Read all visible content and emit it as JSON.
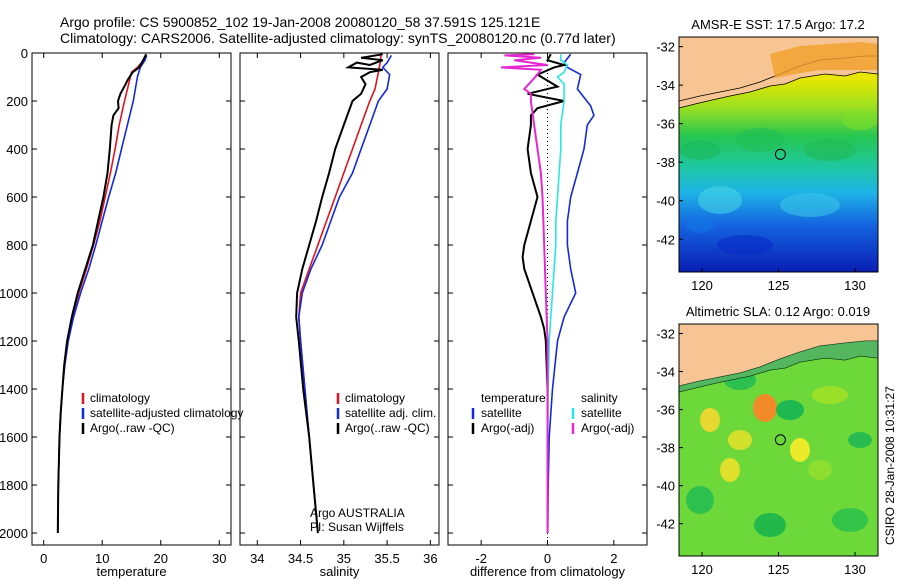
{
  "header": {
    "title_line1": "Argo profile: CS 5900852_102 19-Jan-2008 20080120_58 37.591S 125.121E",
    "title_line2": "Climatology: CARS2006. Satellite-adjusted climatology: synTS_20080120.nc (0.77d later)"
  },
  "colors": {
    "red": "#e0141e",
    "blue": "#1428dc",
    "black": "#000000",
    "cyan": "#28e6e6",
    "magenta": "#e628d2",
    "land": "#f7c493"
  },
  "chart_data": [
    {
      "id": "temperature",
      "type": "line",
      "xlabel": "temperature",
      "xlim": [
        -2,
        32
      ],
      "xticks": [
        0,
        10,
        20,
        30
      ],
      "ylim": [
        2050,
        0
      ],
      "yticks": [
        0,
        200,
        400,
        600,
        800,
        1000,
        1200,
        1400,
        1600,
        1800,
        2000
      ],
      "legend": [
        "climatology",
        "satellite-adjusted climatology",
        "Argo(..raw -QC)"
      ],
      "series": [
        {
          "name": "climatology",
          "color": "red",
          "points": [
            [
              17.4,
              10
            ],
            [
              17.1,
              30
            ],
            [
              16.0,
              60
            ],
            [
              15.0,
              80
            ],
            [
              14.6,
              120
            ],
            [
              13.8,
              200
            ],
            [
              12.9,
              300
            ],
            [
              12.2,
              400
            ],
            [
              11.4,
              500
            ],
            [
              10.5,
              600
            ],
            [
              9.6,
              700
            ],
            [
              8.5,
              800
            ],
            [
              7.3,
              900
            ],
            [
              6.0,
              1000
            ],
            [
              4.9,
              1100
            ],
            [
              4.1,
              1200
            ],
            [
              3.6,
              1300
            ],
            [
              3.2,
              1400
            ],
            [
              2.9,
              1500
            ],
            [
              2.7,
              1600
            ],
            [
              2.5,
              1800
            ],
            [
              2.4,
              2000
            ]
          ]
        },
        {
          "name": "satellite-adjusted climatology",
          "color": "blue",
          "points": [
            [
              17.6,
              10
            ],
            [
              17.3,
              30
            ],
            [
              16.5,
              60
            ],
            [
              16.0,
              100
            ],
            [
              15.3,
              200
            ],
            [
              14.3,
              300
            ],
            [
              13.3,
              400
            ],
            [
              12.3,
              500
            ],
            [
              11.1,
              600
            ],
            [
              10.0,
              700
            ],
            [
              8.9,
              800
            ],
            [
              7.7,
              900
            ],
            [
              6.3,
              1000
            ],
            [
              5.1,
              1100
            ],
            [
              4.2,
              1200
            ],
            [
              3.6,
              1300
            ],
            [
              3.2,
              1400
            ],
            [
              2.9,
              1500
            ],
            [
              2.7,
              1600
            ],
            [
              2.5,
              1800
            ],
            [
              2.4,
              2000
            ]
          ]
        },
        {
          "name": "Argo(..raw -QC)",
          "color": "black",
          "points": [
            [
              17.5,
              5
            ],
            [
              17.0,
              30
            ],
            [
              16.3,
              60
            ],
            [
              15.2,
              80
            ],
            [
              14.4,
              110
            ],
            [
              14.0,
              130
            ],
            [
              13.1,
              170
            ],
            [
              12.7,
              200
            ],
            [
              12.8,
              230
            ],
            [
              11.9,
              260
            ],
            [
              11.6,
              300
            ],
            [
              11.3,
              400
            ],
            [
              10.9,
              500
            ],
            [
              10.2,
              600
            ],
            [
              9.3,
              700
            ],
            [
              8.4,
              800
            ],
            [
              7.1,
              900
            ],
            [
              5.8,
              1000
            ],
            [
              4.8,
              1100
            ],
            [
              4.0,
              1200
            ],
            [
              3.5,
              1300
            ],
            [
              3.2,
              1400
            ],
            [
              2.9,
              1500
            ],
            [
              2.7,
              1600
            ],
            [
              2.5,
              1800
            ],
            [
              2.4,
              2000
            ]
          ]
        }
      ]
    },
    {
      "id": "salinity",
      "type": "line",
      "xlabel": "salinity",
      "xlim": [
        33.8,
        36.1
      ],
      "xticks": [
        34,
        34.5,
        35,
        35.5,
        36
      ],
      "ylim": [
        2050,
        0
      ],
      "legend": [
        "climatology",
        "satellite adj. clim.",
        "Argo(..raw -QC)"
      ],
      "annotation": [
        "Argo AUSTRALIA",
        "PI: Susan Wijffels"
      ],
      "series": [
        {
          "name": "climatology",
          "color": "red",
          "points": [
            [
              35.43,
              10
            ],
            [
              35.42,
              40
            ],
            [
              35.4,
              80
            ],
            [
              35.36,
              150
            ],
            [
              35.3,
              200
            ],
            [
              35.2,
              300
            ],
            [
              35.1,
              400
            ],
            [
              35.0,
              500
            ],
            [
              34.9,
              600
            ],
            [
              34.8,
              700
            ],
            [
              34.7,
              800
            ],
            [
              34.6,
              900
            ],
            [
              34.5,
              1000
            ],
            [
              34.48,
              1100
            ],
            [
              34.5,
              1200
            ],
            [
              34.55,
              1400
            ],
            [
              34.6,
              1600
            ],
            [
              34.65,
              1800
            ],
            [
              34.7,
              2000
            ]
          ]
        },
        {
          "name": "satellite adj. clim.",
          "color": "blue",
          "points": [
            [
              35.55,
              10
            ],
            [
              35.5,
              40
            ],
            [
              35.45,
              60
            ],
            [
              35.53,
              90
            ],
            [
              35.5,
              150
            ],
            [
              35.4,
              200
            ],
            [
              35.3,
              300
            ],
            [
              35.2,
              400
            ],
            [
              35.1,
              500
            ],
            [
              34.95,
              600
            ],
            [
              34.85,
              700
            ],
            [
              34.75,
              800
            ],
            [
              34.62,
              900
            ],
            [
              34.52,
              1000
            ],
            [
              34.48,
              1100
            ],
            [
              34.5,
              1200
            ],
            [
              34.55,
              1400
            ],
            [
              34.6,
              1600
            ],
            [
              34.65,
              1800
            ],
            [
              34.7,
              2000
            ]
          ]
        },
        {
          "name": "Argo(..raw -QC)",
          "color": "black",
          "points": [
            [
              35.45,
              5
            ],
            [
              35.2,
              20
            ],
            [
              35.45,
              30
            ],
            [
              35.3,
              50
            ],
            [
              35.15,
              40
            ],
            [
              35.05,
              60
            ],
            [
              35.45,
              70
            ],
            [
              35.3,
              80
            ],
            [
              35.2,
              100
            ],
            [
              35.25,
              130
            ],
            [
              35.2,
              170
            ],
            [
              35.1,
              200
            ],
            [
              35.0,
              300
            ],
            [
              34.9,
              400
            ],
            [
              34.83,
              500
            ],
            [
              34.75,
              600
            ],
            [
              34.68,
              700
            ],
            [
              34.6,
              800
            ],
            [
              34.52,
              900
            ],
            [
              34.46,
              1000
            ],
            [
              34.45,
              1100
            ],
            [
              34.48,
              1200
            ],
            [
              34.53,
              1400
            ],
            [
              34.6,
              1600
            ],
            [
              34.65,
              1800
            ],
            [
              34.7,
              2000
            ]
          ]
        }
      ]
    },
    {
      "id": "difference",
      "type": "line",
      "xlabel": "difference from climatology",
      "xlim": [
        -3,
        3
      ],
      "xticks": [
        -2,
        0,
        2
      ],
      "ylim": [
        2050,
        0
      ],
      "legend": [
        {
          "group": "temperature",
          "items": [
            "satellite",
            "Argo(-adj)"
          ]
        },
        {
          "group": "salinity",
          "items": [
            "satellite",
            "Argo(-adj)"
          ]
        }
      ],
      "series": [
        {
          "name": "temperature satellite",
          "color": "blue",
          "points": [
            [
              0.7,
              5
            ],
            [
              0.5,
              40
            ],
            [
              0.6,
              60
            ],
            [
              1.0,
              90
            ],
            [
              0.9,
              150
            ],
            [
              1.3,
              220
            ],
            [
              1.4,
              260
            ],
            [
              1.2,
              300
            ],
            [
              1.1,
              400
            ],
            [
              0.9,
              500
            ],
            [
              0.7,
              600
            ],
            [
              0.6,
              700
            ],
            [
              0.6,
              800
            ],
            [
              0.7,
              900
            ],
            [
              0.85,
              1000
            ],
            [
              0.5,
              1100
            ],
            [
              0.3,
              1200
            ],
            [
              0.15,
              1400
            ],
            [
              0.05,
              1600
            ],
            [
              0.02,
              1800
            ],
            [
              0.01,
              2000
            ]
          ]
        },
        {
          "name": "temperature Argo(-adj)",
          "color": "black",
          "points": [
            [
              0.1,
              5
            ],
            [
              0.0,
              30
            ],
            [
              0.5,
              50
            ],
            [
              0.2,
              60
            ],
            [
              -0.3,
              90
            ],
            [
              0.3,
              140
            ],
            [
              -0.6,
              170
            ],
            [
              0.5,
              200
            ],
            [
              -0.3,
              230
            ],
            [
              -0.5,
              260
            ],
            [
              -0.5,
              300
            ],
            [
              -0.6,
              400
            ],
            [
              -0.5,
              500
            ],
            [
              -0.3,
              600
            ],
            [
              -0.5,
              700
            ],
            [
              -0.7,
              800
            ],
            [
              -0.75,
              850
            ],
            [
              -0.7,
              900
            ],
            [
              -0.45,
              1000
            ],
            [
              -0.2,
              1100
            ],
            [
              -0.1,
              1150
            ],
            [
              -0.05,
              1200
            ],
            [
              0.0,
              1400
            ],
            [
              0.0,
              1600
            ],
            [
              0.0,
              2000
            ]
          ]
        },
        {
          "name": "salinity satellite",
          "color": "cyan",
          "points": [
            [
              0.4,
              5
            ],
            [
              0.4,
              30
            ],
            [
              0.6,
              50
            ],
            [
              0.5,
              80
            ],
            [
              0.3,
              100
            ],
            [
              0.5,
              130
            ],
            [
              0.5,
              200
            ],
            [
              0.4,
              300
            ],
            [
              0.4,
              400
            ],
            [
              0.35,
              500
            ],
            [
              0.3,
              600
            ],
            [
              0.25,
              700
            ],
            [
              0.25,
              800
            ],
            [
              0.2,
              900
            ],
            [
              0.15,
              1000
            ],
            [
              0.1,
              1100
            ],
            [
              0.05,
              1200
            ],
            [
              0.02,
              1400
            ],
            [
              0.01,
              1600
            ],
            [
              0.0,
              2000
            ]
          ]
        },
        {
          "name": "salinity Argo(-adj)",
          "color": "magenta",
          "points": [
            [
              -0.4,
              5
            ],
            [
              -1.3,
              10
            ],
            [
              -0.2,
              20
            ],
            [
              -1.0,
              30
            ],
            [
              -0.5,
              40
            ],
            [
              0.0,
              50
            ],
            [
              -1.4,
              60
            ],
            [
              -0.2,
              70
            ],
            [
              -0.3,
              90
            ],
            [
              -0.7,
              150
            ],
            [
              -0.5,
              170
            ],
            [
              -0.5,
              200
            ],
            [
              -0.4,
              300
            ],
            [
              -0.3,
              400
            ],
            [
              -0.2,
              500
            ],
            [
              -0.15,
              600
            ],
            [
              -0.1,
              800
            ],
            [
              -0.05,
              1000
            ],
            [
              0.0,
              1200
            ],
            [
              0.0,
              2000
            ]
          ]
        }
      ]
    },
    {
      "id": "sst_map",
      "type": "heatmap",
      "title": "AMSR-E SST: 17.5 Argo: 17.2",
      "xlim": [
        118.5,
        131.5
      ],
      "ylim": [
        -43.7,
        -31.5
      ],
      "xticks": [
        120,
        125,
        130
      ],
      "yticks": [
        -32,
        -34,
        -36,
        -38,
        -40,
        -42
      ],
      "marker": [
        125.121,
        -37.591
      ]
    },
    {
      "id": "sla_map",
      "type": "heatmap",
      "title": "Altimetric SLA: 0.12 Argo: 0.019",
      "xlim": [
        118.5,
        131.5
      ],
      "ylim": [
        -43.7,
        -31.5
      ],
      "xticks": [
        120,
        125,
        130
      ],
      "yticks": [
        -32,
        -34,
        -36,
        -38,
        -40,
        -42
      ],
      "marker": [
        125.121,
        -37.591
      ]
    }
  ],
  "side_text": "CSIRO 28-Jan-2008 10:31:27"
}
